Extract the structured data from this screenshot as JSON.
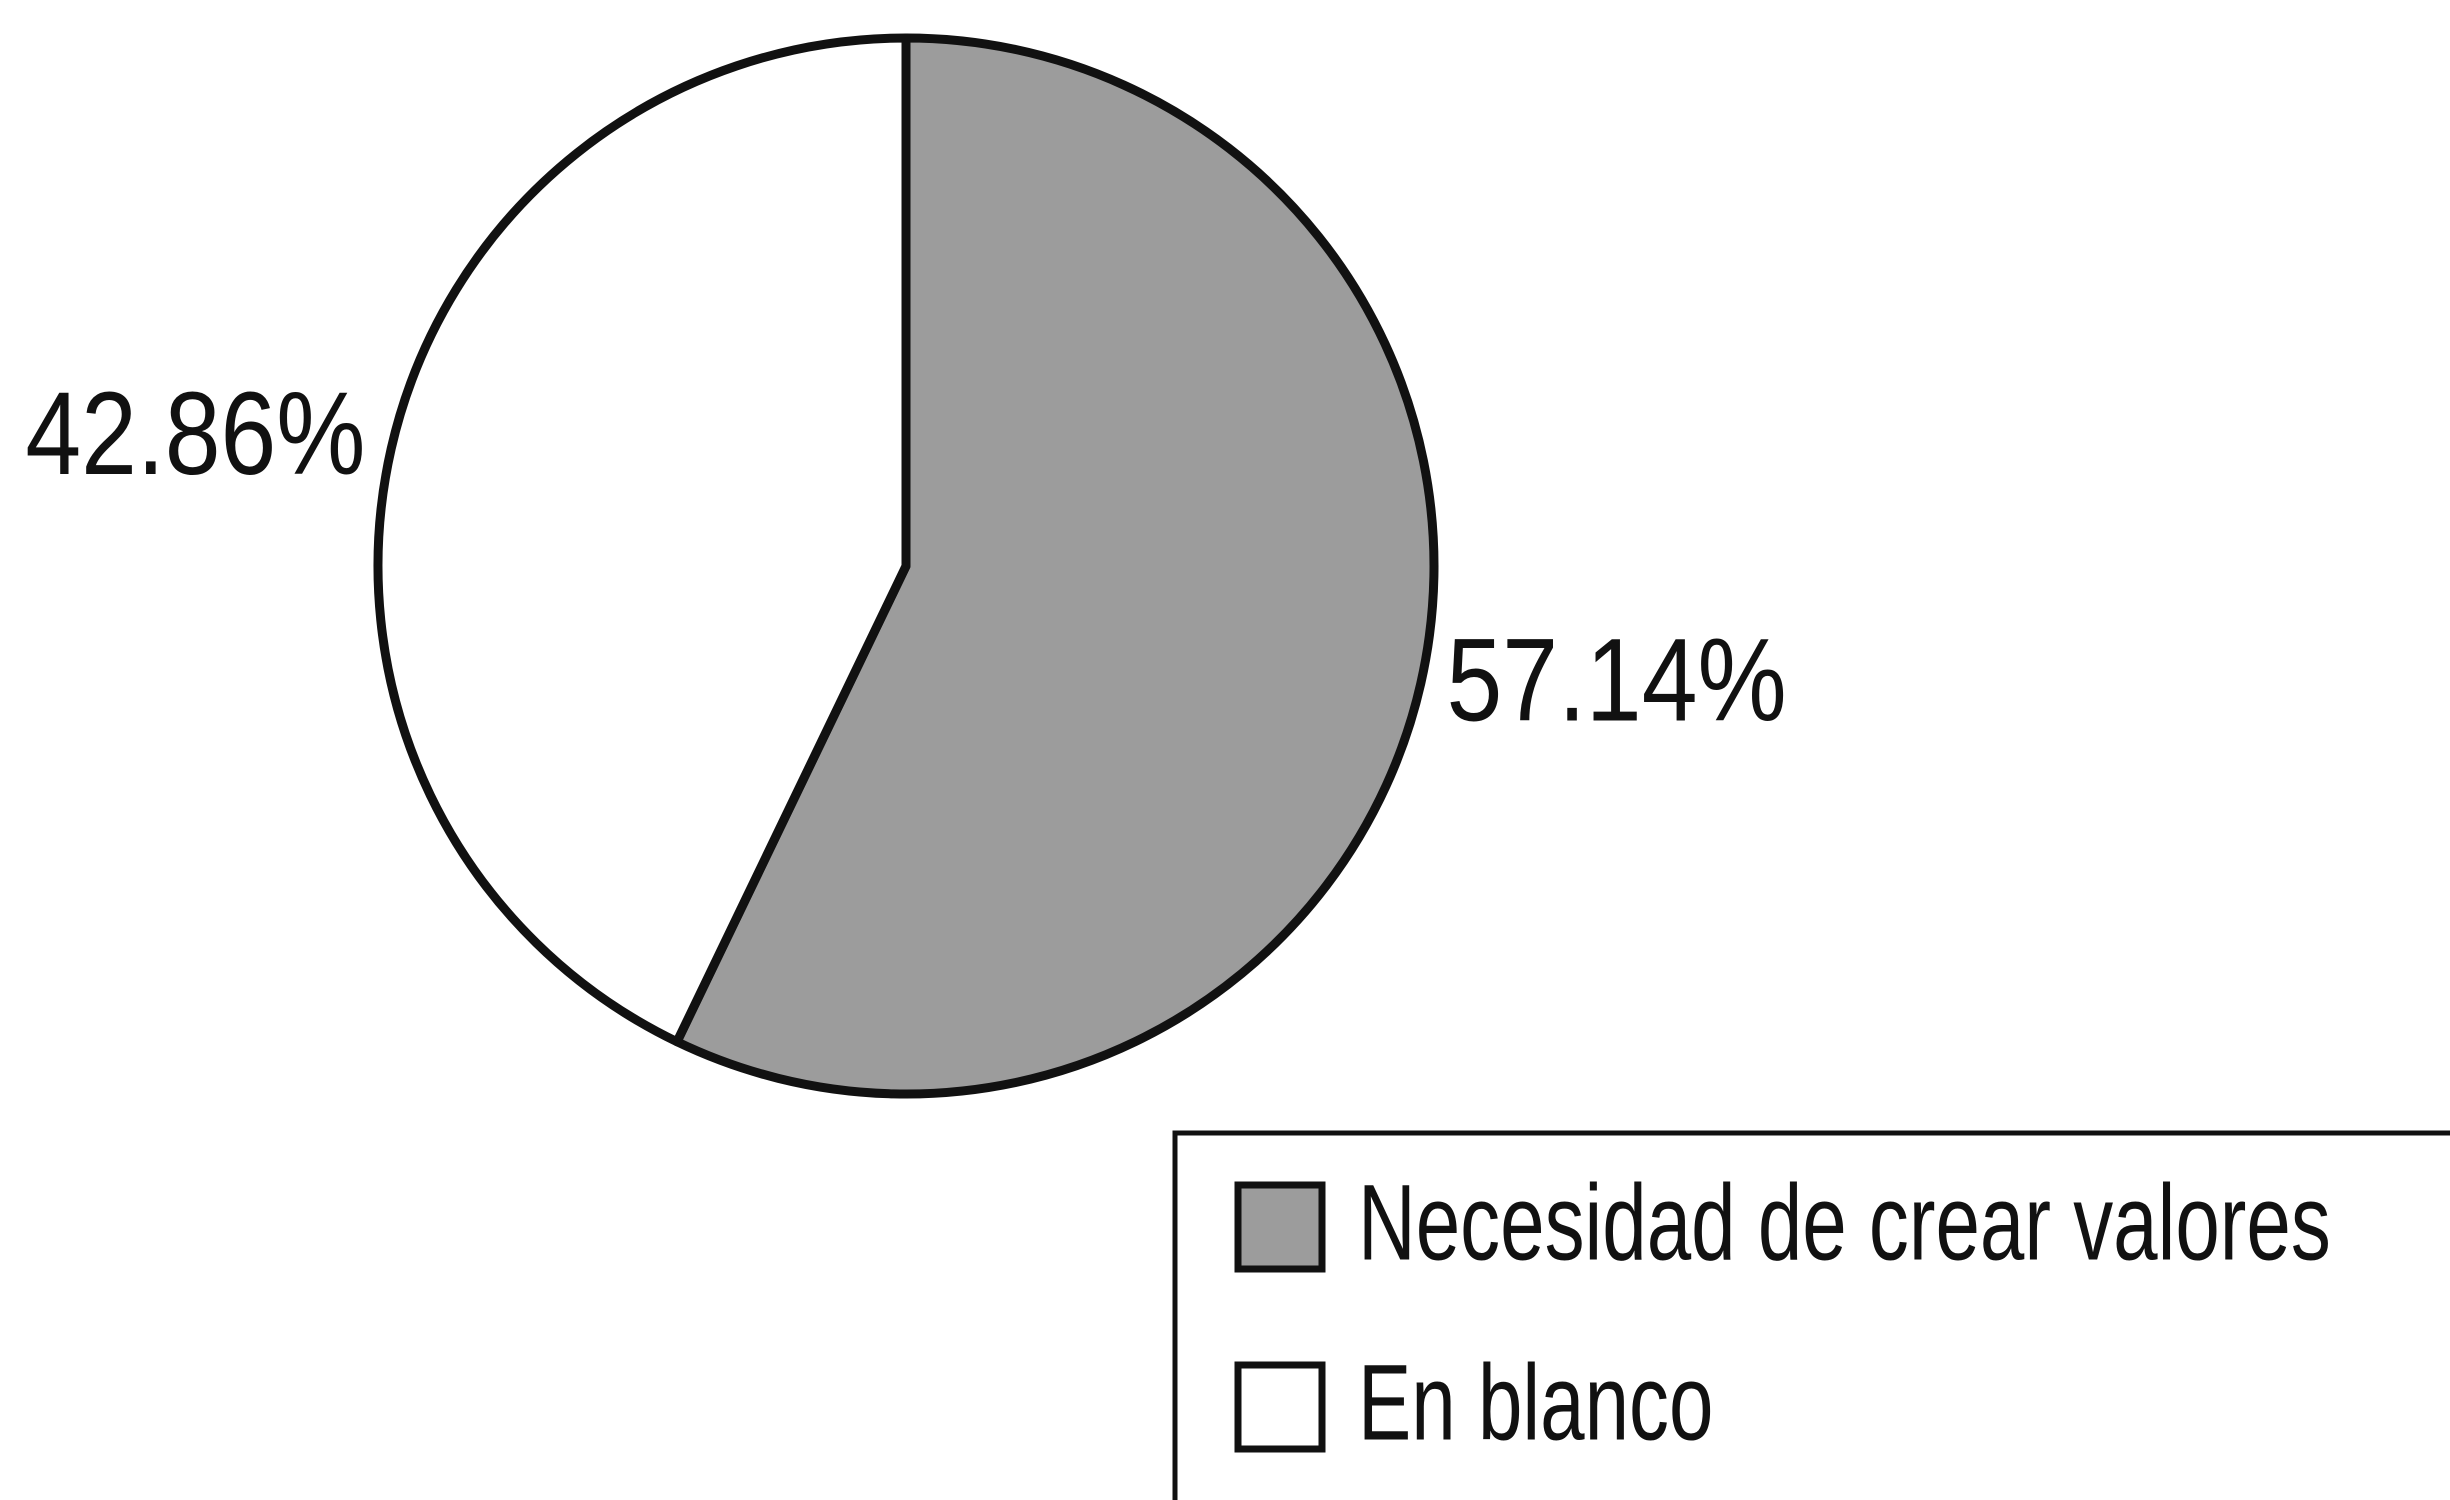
{
  "chart_data": {
    "type": "pie",
    "categories": [
      "Necesidad de crear valores",
      "En blanco"
    ],
    "values": [
      57.14,
      42.86
    ],
    "value_labels": [
      "57.14%",
      "42.86%"
    ],
    "colors": [
      "#9c9c9c",
      "#ffffff"
    ]
  }
}
